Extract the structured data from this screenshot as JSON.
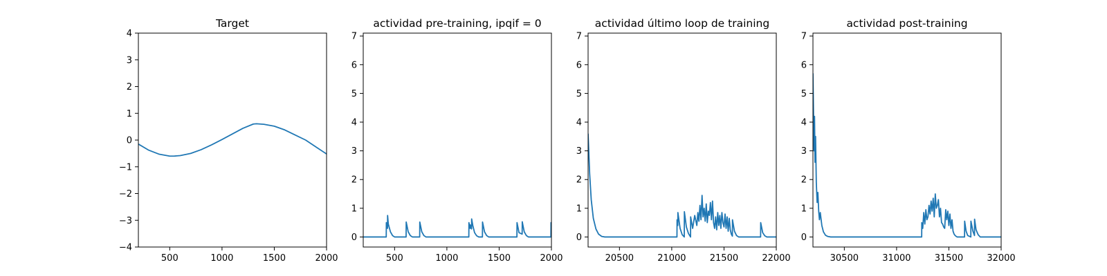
{
  "colors": {
    "series": "#1f77b4",
    "axes": "#000000",
    "background": "#ffffff"
  },
  "chart_data": [
    {
      "type": "line",
      "title": "Target",
      "xlabel": "",
      "ylabel": "",
      "xlim": [
        200,
        2000
      ],
      "ylim": [
        -4,
        4
      ],
      "xticks": [
        500,
        1000,
        1500,
        2000
      ],
      "yticks": [
        -4,
        -3,
        -2,
        -1,
        0,
        1,
        2,
        3,
        4
      ],
      "grid": false,
      "series": [
        {
          "x": [
            200,
            300,
            400,
            500,
            540,
            600,
            700,
            800,
            900,
            1000,
            1100,
            1200,
            1300,
            1330,
            1400,
            1500,
            1600,
            1700,
            1800,
            1900,
            2000
          ],
          "y": [
            -0.15,
            -0.38,
            -0.53,
            -0.6,
            -0.6,
            -0.58,
            -0.5,
            -0.36,
            -0.18,
            0.02,
            0.23,
            0.44,
            0.6,
            0.61,
            0.59,
            0.52,
            0.38,
            0.19,
            0.0,
            -0.26,
            -0.52
          ]
        }
      ]
    },
    {
      "type": "line",
      "title": "actividad pre-training, ipqif = 0",
      "xlabel": "",
      "ylabel": "",
      "xlim": [
        200,
        2000
      ],
      "ylim": [
        -0.35,
        7.1
      ],
      "xticks": [
        500,
        1000,
        1500,
        2000
      ],
      "yticks": [
        0,
        1,
        2,
        3,
        4,
        5,
        6,
        7
      ],
      "grid": false,
      "series": [
        {
          "x": [
            200,
            420,
            421,
            426,
            427,
            432,
            433,
            440,
            460,
            480,
            500,
            610,
            611,
            630,
            650,
            670,
            740,
            741,
            760,
            780,
            800,
            1210,
            1211,
            1222,
            1223,
            1236,
            1237,
            1248,
            1265,
            1285,
            1305,
            1340,
            1341,
            1360,
            1380,
            1400,
            1670,
            1671,
            1690,
            1720,
            1721,
            1740,
            1760,
            1780,
            1995,
            1996,
            2000
          ],
          "y": [
            0,
            0,
            0.5,
            0.35,
            0.45,
            0.3,
            0.75,
            0.45,
            0.18,
            0.05,
            0,
            0,
            0.52,
            0.18,
            0.05,
            0,
            0,
            0.52,
            0.18,
            0.05,
            0,
            0,
            0.5,
            0.3,
            0.42,
            0.28,
            0.63,
            0.4,
            0.15,
            0.04,
            0,
            0,
            0.52,
            0.18,
            0.05,
            0,
            0,
            0.5,
            0.15,
            0.1,
            0.53,
            0.18,
            0.05,
            0,
            0,
            0.5,
            0.3
          ]
        }
      ]
    },
    {
      "type": "line",
      "title": "actividad último loop de training",
      "xlabel": "",
      "ylabel": "",
      "xlim": [
        20200,
        22000
      ],
      "ylim": [
        -0.35,
        7.1
      ],
      "xticks": [
        20500,
        21000,
        21500,
        22000
      ],
      "yticks": [
        0,
        1,
        2,
        3,
        4,
        5,
        6,
        7
      ],
      "grid": false,
      "series": [
        {
          "x": [
            20200,
            20215,
            20230,
            20250,
            20275,
            20300,
            20330,
            20360,
            21050,
            21051,
            21058,
            21059,
            21080,
            21100,
            21120,
            21121,
            21140,
            21160,
            21180,
            21181,
            21200,
            21220,
            21240,
            21250,
            21260,
            21270,
            21280,
            21290,
            21300,
            21310,
            21320,
            21330,
            21340,
            21350,
            21360,
            21370,
            21380,
            21390,
            21400,
            21410,
            21420,
            21430,
            21440,
            21450,
            21460,
            21470,
            21480,
            21490,
            21500,
            21510,
            21520,
            21530,
            21540,
            21550,
            21560,
            21570,
            21580,
            21581,
            21600,
            21620,
            21640,
            21850,
            21851,
            21870,
            21890,
            21910,
            22000
          ],
          "y": [
            3.6,
            2.2,
            1.3,
            0.65,
            0.28,
            0.1,
            0.02,
            0,
            0,
            0.6,
            0.4,
            0.85,
            0.3,
            0.08,
            0,
            0.88,
            0.35,
            0.12,
            0,
            0.7,
            0.3,
            0.75,
            0.4,
            0.85,
            0.55,
            1.1,
            0.6,
            1.45,
            0.7,
            1.0,
            0.55,
            1.15,
            0.5,
            0.9,
            0.75,
            1.2,
            0.6,
            1.25,
            0.5,
            0.3,
            0.7,
            0.25,
            0.85,
            0.4,
            0.75,
            0.3,
            0.85,
            0.5,
            0.35,
            0.8,
            0.3,
            0.7,
            0.2,
            0.65,
            0.25,
            0.1,
            0.03,
            0.6,
            0.2,
            0.05,
            0,
            0,
            0.5,
            0.15,
            0.04,
            0,
            0
          ]
        }
      ]
    },
    {
      "type": "line",
      "title": "actividad post-training",
      "xlabel": "",
      "ylabel": "",
      "xlim": [
        30200,
        32000
      ],
      "ylim": [
        -0.35,
        7.1
      ],
      "xticks": [
        30500,
        31000,
        31500,
        32000
      ],
      "yticks": [
        0,
        1,
        2,
        3,
        4,
        5,
        6,
        7
      ],
      "grid": false,
      "series": [
        {
          "x": [
            30200,
            30205,
            30210,
            30215,
            30220,
            30225,
            30232,
            30240,
            30247,
            30255,
            30262,
            30270,
            30285,
            30300,
            30320,
            30340,
            30370,
            30400,
            31240,
            31241,
            31250,
            31260,
            31270,
            31280,
            31290,
            31300,
            31310,
            31320,
            31330,
            31340,
            31350,
            31360,
            31370,
            31380,
            31390,
            31400,
            31410,
            31420,
            31430,
            31440,
            31450,
            31460,
            31470,
            31480,
            31490,
            31500,
            31510,
            31520,
            31530,
            31540,
            31550,
            31560,
            31570,
            31580,
            31590,
            31600,
            31650,
            31651,
            31665,
            31680,
            31710,
            31711,
            31730,
            31745,
            31746,
            31760,
            31780,
            31800,
            32000
          ],
          "y": [
            5.7,
            4.4,
            3.0,
            4.2,
            2.6,
            3.5,
            1.9,
            1.2,
            1.55,
            0.9,
            0.6,
            0.85,
            0.4,
            0.18,
            0.06,
            0.02,
            0,
            0,
            0,
            0.5,
            0.3,
            0.85,
            0.45,
            0.95,
            0.6,
            0.7,
            1.1,
            0.8,
            1.25,
            0.9,
            1.35,
            0.7,
            1.5,
            1.0,
            1.1,
            1.3,
            0.7,
            1.0,
            0.5,
            0.45,
            0.35,
            0.3,
            0.95,
            0.6,
            0.9,
            0.4,
            0.8,
            0.3,
            0.6,
            0.2,
            0.1,
            0.05,
            0.02,
            0,
            0,
            0,
            0,
            0.55,
            0.2,
            0.05,
            0,
            0.55,
            0.2,
            0.05,
            0.62,
            0.25,
            0.08,
            0,
            0
          ]
        }
      ]
    }
  ]
}
